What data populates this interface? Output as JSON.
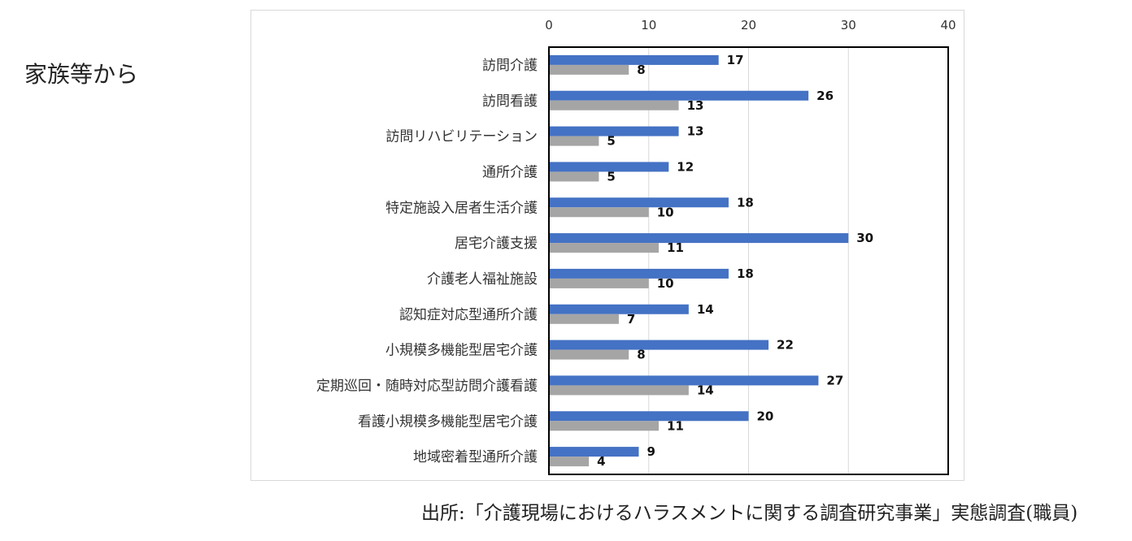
{
  "side_label": "家族等から",
  "source": "出所:「介護現場におけるハラスメントに関する調査研究事業」実態調査(職員)",
  "colors": {
    "series1": "#4472c4",
    "series2": "#a5a5a5",
    "grid": "#d9d9d9",
    "plot_border": "#000000"
  },
  "chart_data": {
    "type": "bar",
    "orientation": "horizontal",
    "title": "",
    "xlabel": "",
    "ylabel": "",
    "xlim": [
      0,
      40
    ],
    "xticks": [
      0,
      10,
      20,
      30,
      40
    ],
    "axis_position": "top",
    "grid": true,
    "legend": "none",
    "categories": [
      "訪問介護",
      "訪問看護",
      "訪問リハビリテーション",
      "通所介護",
      "特定施設入居者生活介護",
      "居宅介護支援",
      "介護老人福祉施設",
      "認知症対応型通所介護",
      "小規模多機能型居宅介護",
      "定期巡回・随時対応型訪問介護看護",
      "看護小規模多機能型居宅介護",
      "地域密着型通所介護"
    ],
    "series": [
      {
        "values": [
          17,
          26,
          13,
          12,
          18,
          30,
          18,
          14,
          22,
          27,
          20,
          9
        ]
      },
      {
        "values": [
          8,
          13,
          5,
          5,
          10,
          11,
          10,
          7,
          8,
          14,
          11,
          4
        ]
      }
    ]
  }
}
